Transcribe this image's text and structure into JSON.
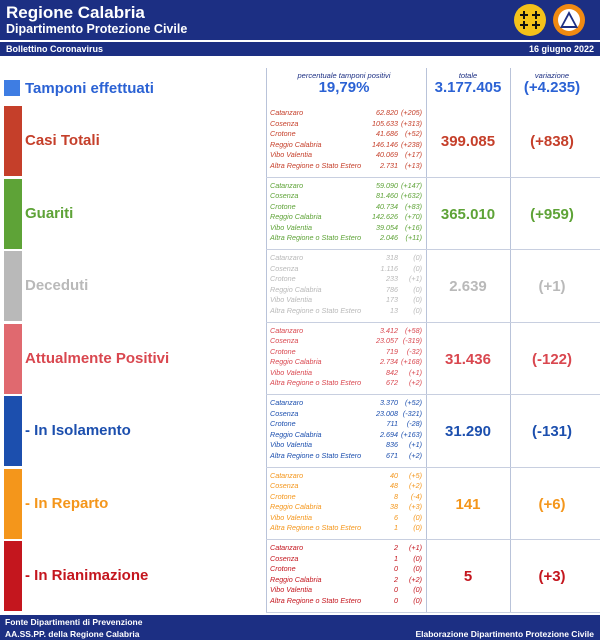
{
  "header": {
    "title": "Regione Calabria",
    "subtitle": "Dipartimento Protezione Civile",
    "logos": [
      "regione-calabria-logo",
      "protezione-civile-logo"
    ],
    "colors": {
      "primary": "#1c2f83"
    }
  },
  "bar": {
    "left": "Bollettino Coronavirus",
    "right": "16 giugno 2022"
  },
  "columns": {
    "pct": "percentuale tamponi positivi",
    "total": "totale",
    "variation": "variazione"
  },
  "tamponi": {
    "label": "Tamponi effettuati",
    "pct": "19,79%",
    "total": "3.177.405",
    "variation": "(+4.235)",
    "color": "#2b62d4"
  },
  "sections": [
    {
      "key": "casi",
      "label": "Casi Totali",
      "color": "#c53f2a",
      "strip": "#c53f2a",
      "total": "399.085",
      "variation": "(+838)",
      "rows": [
        {
          "region": "Catanzaro",
          "count": "62.820",
          "delta": "(+205)"
        },
        {
          "region": "Cosenza",
          "count": "105.633",
          "delta": "(+313)"
        },
        {
          "region": "Crotone",
          "count": "41.686",
          "delta": "(+52)"
        },
        {
          "region": "Reggio Calabria",
          "count": "146.146",
          "delta": "(+238)"
        },
        {
          "region": "Vibo Valentia",
          "count": "40.069",
          "delta": "(+17)"
        },
        {
          "region": "Altra Regione o Stato Estero",
          "count": "2.731",
          "delta": "(+13)"
        }
      ]
    },
    {
      "key": "guariti",
      "label": "Guariti",
      "color": "#5ea337",
      "strip": "#5ea337",
      "total": "365.010",
      "variation": "(+959)",
      "rows": [
        {
          "region": "Catanzaro",
          "count": "59.090",
          "delta": "(+147)"
        },
        {
          "region": "Cosenza",
          "count": "81.460",
          "delta": "(+632)"
        },
        {
          "region": "Crotone",
          "count": "40.734",
          "delta": "(+83)"
        },
        {
          "region": "Reggio Calabria",
          "count": "142.626",
          "delta": "(+70)"
        },
        {
          "region": "Vibo Valentia",
          "count": "39.054",
          "delta": "(+16)"
        },
        {
          "region": "Altra Regione o Stato Estero",
          "count": "2.046",
          "delta": "(+11)"
        }
      ]
    },
    {
      "key": "deceduti",
      "label": "Deceduti",
      "color": "#b9b9b9",
      "strip": "#b9b9b9",
      "total": "2.639",
      "variation": "(+1)",
      "rows": [
        {
          "region": "Catanzaro",
          "count": "318",
          "delta": "(0)"
        },
        {
          "region": "Cosenza",
          "count": "1.116",
          "delta": "(0)"
        },
        {
          "region": "Crotone",
          "count": "233",
          "delta": "(+1)"
        },
        {
          "region": "Reggio Calabria",
          "count": "786",
          "delta": "(0)"
        },
        {
          "region": "Vibo Valentia",
          "count": "173",
          "delta": "(0)"
        },
        {
          "region": "Altra Regione o Stato Estero",
          "count": "13",
          "delta": "(0)"
        }
      ]
    },
    {
      "key": "positivi",
      "label": "Attualmente Positivi",
      "color": "#d9474f",
      "strip": "#e0696f",
      "total": "31.436",
      "variation": "(-122)",
      "rows": [
        {
          "region": "Catanzaro",
          "count": "3.412",
          "delta": "(+58)"
        },
        {
          "region": "Cosenza",
          "count": "23.057",
          "delta": "(-319)"
        },
        {
          "region": "Crotone",
          "count": "719",
          "delta": "(-32)"
        },
        {
          "region": "Reggio Calabria",
          "count": "2.734",
          "delta": "(+168)"
        },
        {
          "region": "Vibo Valentia",
          "count": "842",
          "delta": "(+1)"
        },
        {
          "region": "Altra Regione o Stato Estero",
          "count": "672",
          "delta": "(+2)"
        }
      ]
    },
    {
      "key": "isolamento",
      "label": " - In Isolamento",
      "color": "#1c4fae",
      "strip": "#1c4fae",
      "total": "31.290",
      "variation": "(-131)",
      "rows": [
        {
          "region": "Catanzaro",
          "count": "3.370",
          "delta": "(+52)"
        },
        {
          "region": "Cosenza",
          "count": "23.008",
          "delta": "(-321)"
        },
        {
          "region": "Crotone",
          "count": "711",
          "delta": "(-28)"
        },
        {
          "region": "Reggio Calabria",
          "count": "2.694",
          "delta": "(+163)"
        },
        {
          "region": "Vibo Valentia",
          "count": "836",
          "delta": "(+1)"
        },
        {
          "region": "Altra Regione o Stato Estero",
          "count": "671",
          "delta": "(+2)"
        }
      ]
    },
    {
      "key": "reparto",
      "label": " - In Reparto",
      "color": "#f4961b",
      "strip": "#f4961b",
      "total": "141",
      "variation": "(+6)",
      "rows": [
        {
          "region": "Catanzaro",
          "count": "40",
          "delta": "(+5)"
        },
        {
          "region": "Cosenza",
          "count": "48",
          "delta": "(+2)"
        },
        {
          "region": "Crotone",
          "count": "8",
          "delta": "(-4)"
        },
        {
          "region": "Reggio Calabria",
          "count": "38",
          "delta": "(+3)"
        },
        {
          "region": "Vibo Valentia",
          "count": "6",
          "delta": "(0)"
        },
        {
          "region": "Altra Regione o Stato Estero",
          "count": "1",
          "delta": "(0)"
        }
      ]
    },
    {
      "key": "rianimazione",
      "label": " - In Rianimazione",
      "color": "#c4161e",
      "strip": "#c4161e",
      "total": "5",
      "variation": "(+3)",
      "rows": [
        {
          "region": "Catanzaro",
          "count": "2",
          "delta": "(+1)"
        },
        {
          "region": "Cosenza",
          "count": "1",
          "delta": "(0)"
        },
        {
          "region": "Crotone",
          "count": "0",
          "delta": "(0)"
        },
        {
          "region": "Reggio Calabria",
          "count": "2",
          "delta": "(+2)"
        },
        {
          "region": "Vibo Valentia",
          "count": "0",
          "delta": "(0)"
        },
        {
          "region": "Altra Regione o Stato Estero",
          "count": "0",
          "delta": "(0)"
        }
      ]
    }
  ],
  "footer": {
    "line1": "Fonte Dipartimenti di Prevenzione",
    "line2": "AA.SS.PP.  della Regione Calabria",
    "right": "Elaborazione Dipartimento Protezione Civile"
  }
}
